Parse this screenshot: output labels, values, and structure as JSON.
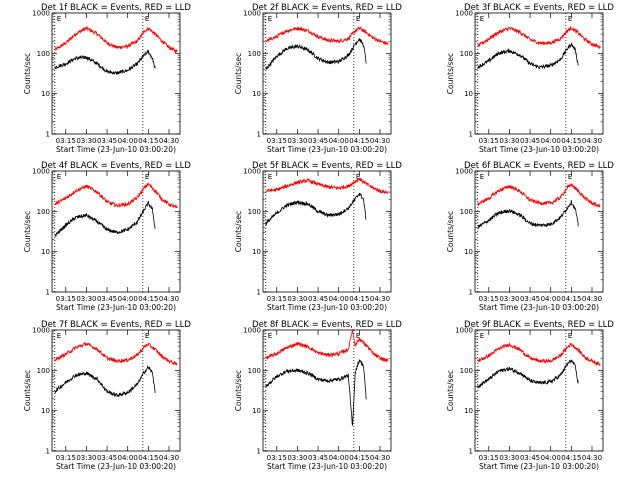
{
  "chart_data": [
    {
      "type": "line",
      "title": "Det 1f BLACK = Events, RED = LLD",
      "xlabel": "Start Time (23-Jun-10 03:00:20)",
      "ylabel": "Counts/sec",
      "yscale": "log",
      "ylim": [
        1,
        1000
      ],
      "xlim": [
        "03:05",
        "04:38"
      ],
      "x_ticks": [
        "03:15",
        "03:30",
        "03:45",
        "04:00",
        "04:15",
        "04:30"
      ],
      "y_ticks": [
        "1",
        "10",
        "100",
        "1000"
      ],
      "markers": [
        "03:07",
        "04:11"
      ],
      "annotations": [
        "E",
        "E"
      ],
      "series": [
        {
          "color": "#ff0000",
          "x": [
            "03:07",
            "03:15",
            "03:22",
            "03:30",
            "03:38",
            "03:45",
            "03:52",
            "04:00",
            "04:07",
            "04:12",
            "04:15",
            "04:20",
            "04:25",
            "04:30",
            "04:36"
          ],
          "y": [
            120,
            180,
            300,
            420,
            300,
            180,
            140,
            150,
            200,
            350,
            420,
            300,
            200,
            140,
            110
          ]
        },
        {
          "color": "#000000",
          "x": [
            "03:07",
            "03:15",
            "03:22",
            "03:30",
            "03:38",
            "03:45",
            "03:52",
            "04:00",
            "04:07",
            "04:12",
            "04:15",
            "04:18",
            "04:20"
          ],
          "y": [
            45,
            55,
            75,
            80,
            55,
            35,
            32,
            38,
            55,
            90,
            110,
            75,
            40
          ]
        }
      ]
    },
    {
      "type": "line",
      "title": "Det 2f BLACK = Events, RED = LLD",
      "xlabel": "Start Time (23-Jun-10 03:00:20)",
      "ylabel": "Counts/sec",
      "yscale": "log",
      "ylim": [
        1,
        1000
      ],
      "xlim": [
        "03:05",
        "04:38"
      ],
      "x_ticks": [
        "03:15",
        "03:30",
        "03:45",
        "04:00",
        "04:15",
        "04:30"
      ],
      "y_ticks": [
        "1",
        "10",
        "100",
        "1000"
      ],
      "markers": [
        "03:07",
        "04:11"
      ],
      "annotations": [
        "E",
        "E"
      ],
      "series": [
        {
          "color": "#ff0000",
          "x": [
            "03:07",
            "03:15",
            "03:22",
            "03:30",
            "03:38",
            "03:45",
            "03:52",
            "04:00",
            "04:07",
            "04:12",
            "04:15",
            "04:20",
            "04:25",
            "04:30",
            "04:36"
          ],
          "y": [
            200,
            260,
            360,
            420,
            360,
            260,
            210,
            200,
            230,
            360,
            420,
            330,
            240,
            200,
            170
          ]
        },
        {
          "color": "#000000",
          "x": [
            "03:07",
            "03:15",
            "03:22",
            "03:30",
            "03:38",
            "03:45",
            "03:52",
            "04:00",
            "04:07",
            "04:12",
            "04:15",
            "04:18",
            "04:20"
          ],
          "y": [
            40,
            85,
            130,
            150,
            120,
            75,
            60,
            62,
            90,
            170,
            230,
            160,
            60
          ]
        }
      ]
    },
    {
      "type": "line",
      "title": "Det 3f BLACK = Events, RED = LLD",
      "xlabel": "Start Time (23-Jun-10 03:00:20)",
      "ylabel": "Counts/sec",
      "yscale": "log",
      "ylim": [
        1,
        1000
      ],
      "xlim": [
        "03:05",
        "04:38"
      ],
      "x_ticks": [
        "03:15",
        "03:30",
        "03:45",
        "04:00",
        "04:15",
        "04:30"
      ],
      "y_ticks": [
        "1",
        "10",
        "100",
        "1000"
      ],
      "markers": [
        "03:07",
        "04:11"
      ],
      "annotations": [
        "E",
        "E"
      ],
      "series": [
        {
          "color": "#ff0000",
          "x": [
            "03:07",
            "03:15",
            "03:22",
            "03:30",
            "03:38",
            "03:45",
            "03:52",
            "04:00",
            "04:07",
            "04:12",
            "04:15",
            "04:20",
            "04:25",
            "04:30",
            "04:36"
          ],
          "y": [
            150,
            230,
            330,
            420,
            330,
            220,
            180,
            180,
            230,
            360,
            430,
            320,
            220,
            170,
            140
          ]
        },
        {
          "color": "#000000",
          "x": [
            "03:07",
            "03:15",
            "03:22",
            "03:30",
            "03:38",
            "03:45",
            "03:52",
            "04:00",
            "04:07",
            "04:12",
            "04:15",
            "04:18",
            "04:20"
          ],
          "y": [
            45,
            65,
            100,
            115,
            90,
            55,
            45,
            50,
            70,
            130,
            170,
            120,
            50
          ]
        }
      ]
    },
    {
      "type": "line",
      "title": "Det 4f BLACK = Events, RED = LLD",
      "xlabel": "Start Time (23-Jun-10 03:00:20)",
      "ylabel": "Counts/sec",
      "yscale": "log",
      "ylim": [
        1,
        1000
      ],
      "xlim": [
        "03:05",
        "04:38"
      ],
      "x_ticks": [
        "03:15",
        "03:30",
        "03:45",
        "04:00",
        "04:15",
        "04:30"
      ],
      "y_ticks": [
        "1",
        "10",
        "100",
        "1000"
      ],
      "markers": [
        "03:07",
        "04:11"
      ],
      "annotations": [
        "E",
        "E"
      ],
      "series": [
        {
          "color": "#ff0000",
          "x": [
            "03:07",
            "03:15",
            "03:22",
            "03:30",
            "03:38",
            "03:45",
            "03:52",
            "04:00",
            "04:07",
            "04:12",
            "04:15",
            "04:20",
            "04:25",
            "04:30",
            "04:36"
          ],
          "y": [
            150,
            210,
            320,
            420,
            300,
            170,
            140,
            150,
            220,
            380,
            480,
            320,
            200,
            150,
            120
          ]
        },
        {
          "color": "#000000",
          "x": [
            "03:07",
            "03:15",
            "03:22",
            "03:30",
            "03:38",
            "03:45",
            "03:52",
            "04:00",
            "04:07",
            "04:12",
            "04:15",
            "04:18",
            "04:20"
          ],
          "y": [
            25,
            45,
            70,
            80,
            55,
            35,
            30,
            35,
            55,
            110,
            160,
            110,
            35
          ]
        }
      ]
    },
    {
      "type": "line",
      "title": "Det 5f BLACK = Events, RED = LLD",
      "xlabel": "Start Time (23-Jun-10 03:00:20)",
      "ylabel": "Counts/sec",
      "yscale": "log",
      "ylim": [
        1,
        1000
      ],
      "xlim": [
        "03:05",
        "04:38"
      ],
      "x_ticks": [
        "03:15",
        "03:30",
        "03:45",
        "04:00",
        "04:15",
        "04:30"
      ],
      "y_ticks": [
        "1",
        "10",
        "100",
        "1000"
      ],
      "markers": [
        "03:07",
        "04:11"
      ],
      "annotations": [
        "E",
        "E"
      ],
      "series": [
        {
          "color": "#ff0000",
          "x": [
            "03:07",
            "03:15",
            "03:22",
            "03:30",
            "03:38",
            "03:45",
            "03:52",
            "04:00",
            "04:07",
            "04:12",
            "04:15",
            "04:20",
            "04:25",
            "04:30",
            "04:36"
          ],
          "y": [
            320,
            340,
            420,
            520,
            580,
            470,
            400,
            380,
            420,
            550,
            640,
            480,
            380,
            320,
            290
          ]
        },
        {
          "color": "#000000",
          "x": [
            "03:07",
            "03:15",
            "03:22",
            "03:30",
            "03:38",
            "03:45",
            "03:52",
            "04:00",
            "04:07",
            "04:12",
            "04:15",
            "04:18",
            "04:20"
          ],
          "y": [
            50,
            90,
            140,
            170,
            150,
            100,
            80,
            85,
            120,
            200,
            280,
            200,
            60
          ]
        }
      ]
    },
    {
      "type": "line",
      "title": "Det 6f BLACK = Events, RED = LLD",
      "xlabel": "Start Time (23-Jun-10 03:00:20)",
      "ylabel": "Counts/sec",
      "yscale": "log",
      "ylim": [
        1,
        1000
      ],
      "xlim": [
        "03:05",
        "04:38"
      ],
      "x_ticks": [
        "03:15",
        "03:30",
        "03:45",
        "04:00",
        "04:15",
        "04:30"
      ],
      "y_ticks": [
        "1",
        "10",
        "100",
        "1000"
      ],
      "markers": [
        "03:07",
        "04:11"
      ],
      "annotations": [
        "E",
        "E"
      ],
      "series": [
        {
          "color": "#ff0000",
          "x": [
            "03:07",
            "03:15",
            "03:22",
            "03:30",
            "03:38",
            "03:45",
            "03:52",
            "04:00",
            "04:07",
            "04:12",
            "04:15",
            "04:20",
            "04:25",
            "04:30",
            "04:36"
          ],
          "y": [
            150,
            210,
            320,
            420,
            310,
            190,
            160,
            160,
            220,
            380,
            460,
            320,
            210,
            160,
            130
          ]
        },
        {
          "color": "#000000",
          "x": [
            "03:07",
            "03:15",
            "03:22",
            "03:30",
            "03:38",
            "03:45",
            "03:52",
            "04:00",
            "04:07",
            "04:12",
            "04:15",
            "04:18",
            "04:20"
          ],
          "y": [
            40,
            60,
            90,
            105,
            80,
            50,
            45,
            48,
            70,
            120,
            170,
            110,
            45
          ]
        }
      ]
    },
    {
      "type": "line",
      "title": "Det 7f BLACK = Events, RED = LLD",
      "xlabel": "Start Time (23-Jun-10 03:00:20)",
      "ylabel": "Counts/sec",
      "yscale": "log",
      "ylim": [
        1,
        1000
      ],
      "xlim": [
        "03:05",
        "04:38"
      ],
      "x_ticks": [
        "03:15",
        "03:30",
        "03:45",
        "04:00",
        "04:15",
        "04:30"
      ],
      "y_ticks": [
        "1",
        "10",
        "100",
        "1000"
      ],
      "markers": [
        "03:07",
        "04:11"
      ],
      "annotations": [
        "E",
        "E"
      ],
      "series": [
        {
          "color": "#ff0000",
          "x": [
            "03:07",
            "03:15",
            "03:22",
            "03:30",
            "03:38",
            "03:45",
            "03:52",
            "04:00",
            "04:07",
            "04:12",
            "04:15",
            "04:20",
            "04:25",
            "04:30",
            "04:36"
          ],
          "y": [
            180,
            250,
            360,
            460,
            330,
            200,
            170,
            180,
            240,
            380,
            440,
            330,
            220,
            170,
            140
          ]
        },
        {
          "color": "#000000",
          "x": [
            "03:07",
            "03:15",
            "03:22",
            "03:30",
            "03:38",
            "03:45",
            "03:52",
            "04:00",
            "04:07",
            "04:12",
            "04:15",
            "04:18",
            "04:20"
          ],
          "y": [
            30,
            50,
            75,
            85,
            60,
            30,
            24,
            28,
            45,
            90,
            120,
            85,
            30
          ]
        }
      ]
    },
    {
      "type": "line",
      "title": "Det 8f BLACK = Events, RED = LLD",
      "xlabel": "Start Time (23-Jun-10 03:00:20)",
      "ylabel": "Counts/sec",
      "yscale": "log",
      "ylim": [
        1,
        1000
      ],
      "xlim": [
        "03:05",
        "04:38"
      ],
      "x_ticks": [
        "03:15",
        "03:30",
        "03:45",
        "04:00",
        "04:15",
        "04:30"
      ],
      "y_ticks": [
        "1",
        "10",
        "100",
        "1000"
      ],
      "markers": [
        "03:07",
        "04:11"
      ],
      "annotations": [
        "E",
        "E"
      ],
      "series": [
        {
          "color": "#ff0000",
          "x": [
            "03:07",
            "03:15",
            "03:22",
            "03:30",
            "03:38",
            "03:45",
            "03:52",
            "04:00",
            "04:07",
            "04:10",
            "04:12",
            "04:15",
            "04:20",
            "04:25",
            "04:30",
            "04:36"
          ],
          "y": [
            200,
            260,
            360,
            460,
            380,
            270,
            240,
            260,
            330,
            1000,
            420,
            600,
            420,
            260,
            200,
            170
          ]
        },
        {
          "color": "#000000",
          "x": [
            "03:07",
            "03:15",
            "03:22",
            "03:30",
            "03:38",
            "03:45",
            "03:52",
            "04:00",
            "04:07",
            "04:10",
            "04:12",
            "04:15",
            "04:18",
            "04:20"
          ],
          "y": [
            40,
            70,
            95,
            100,
            85,
            60,
            55,
            60,
            75,
            4,
            90,
            180,
            130,
            20
          ]
        }
      ]
    },
    {
      "type": "line",
      "title": "Det 9f BLACK = Events, RED = LLD",
      "xlabel": "Start Time (23-Jun-10 03:00:20)",
      "ylabel": "Counts/sec",
      "yscale": "log",
      "ylim": [
        1,
        1000
      ],
      "xlim": [
        "03:05",
        "04:38"
      ],
      "x_ticks": [
        "03:15",
        "03:30",
        "03:45",
        "04:00",
        "04:15",
        "04:30"
      ],
      "y_ticks": [
        "1",
        "10",
        "100",
        "1000"
      ],
      "markers": [
        "03:07",
        "04:11"
      ],
      "annotations": [
        "E",
        "E"
      ],
      "series": [
        {
          "color": "#ff0000",
          "x": [
            "03:07",
            "03:15",
            "03:22",
            "03:30",
            "03:38",
            "03:45",
            "03:52",
            "04:00",
            "04:07",
            "04:12",
            "04:15",
            "04:20",
            "04:25",
            "04:30",
            "04:36"
          ],
          "y": [
            170,
            230,
            340,
            440,
            320,
            200,
            170,
            170,
            230,
            370,
            450,
            320,
            210,
            170,
            140
          ]
        },
        {
          "color": "#000000",
          "x": [
            "03:07",
            "03:15",
            "03:22",
            "03:30",
            "03:38",
            "03:45",
            "03:52",
            "04:00",
            "04:07",
            "04:12",
            "04:15",
            "04:18",
            "04:20"
          ],
          "y": [
            40,
            60,
            95,
            110,
            85,
            55,
            48,
            52,
            75,
            140,
            180,
            120,
            45
          ]
        }
      ]
    }
  ]
}
